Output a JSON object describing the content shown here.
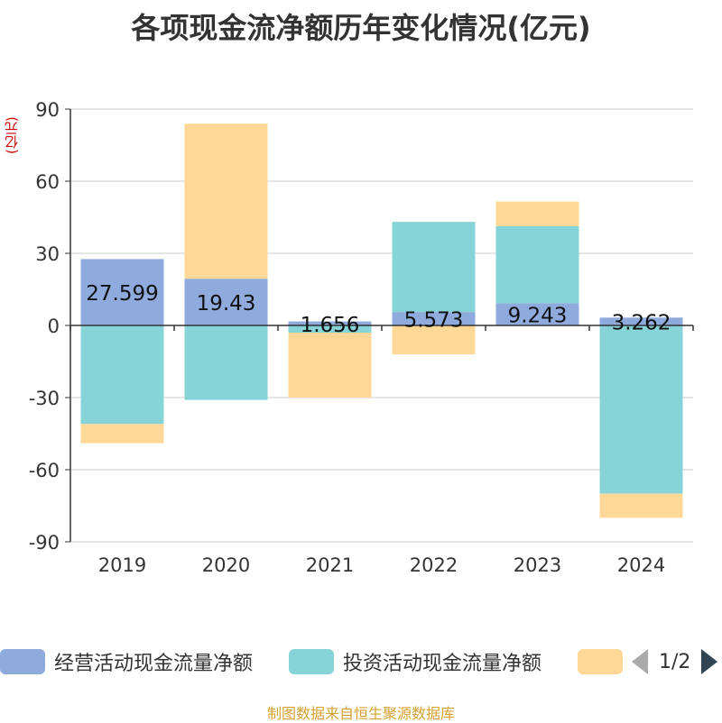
{
  "title": "各项现金流净额历年变化情况(亿元)",
  "unit": "(亿元)",
  "source": "制图数据来自恒生聚源数据库",
  "legend": {
    "items": [
      {
        "label": "经营活动现金流量净额",
        "color": "#8faadc"
      },
      {
        "label": "投资活动现金流量净额",
        "color": "#86d4d7"
      },
      {
        "label": "",
        "color": "#ffd898"
      }
    ],
    "page": "1/2"
  },
  "colors": {
    "axis": "#333333",
    "grid": "#cccccc",
    "text": "#333333"
  },
  "chart_data": {
    "type": "bar",
    "stacked": true,
    "categories": [
      "2019",
      "2020",
      "2021",
      "2022",
      "2023",
      "2024"
    ],
    "ylim": [
      -90,
      90
    ],
    "yticks": [
      90,
      60,
      30,
      0,
      -30,
      -60,
      -90
    ],
    "ylabel": "(亿元)",
    "grid": true,
    "series": [
      {
        "name": "经营活动现金流量净额",
        "color": "#8faadc",
        "values": [
          27.599,
          19.43,
          1.656,
          5.573,
          9.243,
          3.262
        ],
        "labels": [
          "27.599",
          "19.43",
          "1.656",
          "5.573",
          "9.243",
          "3.262"
        ]
      },
      {
        "name": "投资活动现金流量净额",
        "color": "#86d4d7",
        "values": [
          -41,
          -31,
          -3,
          37.5,
          32,
          -70
        ]
      },
      {
        "color": "#ffd898",
        "values": [
          -8,
          64.5,
          -27,
          -12,
          10.3,
          -10
        ]
      }
    ]
  }
}
